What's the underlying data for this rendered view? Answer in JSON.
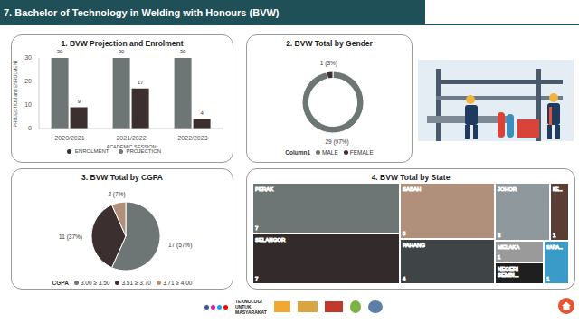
{
  "header": {
    "title": "7. Bachelor of Technology in Welding with Honours (BVW)"
  },
  "footer": {
    "tagline": "TEKNOLOGI UNTUK MASYARAKAT"
  },
  "chart_data": [
    {
      "type": "bar",
      "title": "1. BVW Projection and Enrolment",
      "x_label": "ACADEMIC SESSION",
      "y_label": "PROJECTION and ENROLMENT",
      "categories": [
        "2020/2021",
        "2021/2022",
        "2022/2023"
      ],
      "series": [
        {
          "name": "PROJECTION",
          "color": "#6e7575",
          "values": [
            30,
            30,
            30
          ]
        },
        {
          "name": "ENROLMENT",
          "color": "#3b2f2f",
          "values": [
            9,
            17,
            4
          ]
        }
      ],
      "ylim": [
        0,
        30
      ],
      "yticks": [
        0,
        10,
        20,
        30
      ],
      "grid": false,
      "legend": "bottom",
      "data_labels": true
    },
    {
      "type": "donut",
      "title": "2. BVW Total by Gender",
      "legend_title": "Column1",
      "categories": [
        "MALE",
        "FEMALE"
      ],
      "values": [
        29,
        1
      ],
      "value_labels": [
        "29 (97%)",
        "1 (3%)"
      ],
      "colors": [
        "#6e7575",
        "#3b2f2f"
      ],
      "data_labels": true,
      "legend": "bottom"
    },
    {
      "type": "pie",
      "title": "3. BVW Total by CGPA",
      "legend_title": "CGPA",
      "categories": [
        "3.00 ≥ 3.50",
        "3.51 ≥ 3.70",
        "3.71 ≥ 4.00"
      ],
      "values": [
        17,
        11,
        2
      ],
      "value_labels": [
        "17 (57%)",
        "11 (37%)",
        "2 (7%)"
      ],
      "colors": [
        "#6e7575",
        "#3b2f2f",
        "#b0907a"
      ],
      "data_labels": true,
      "legend": "bottom"
    },
    {
      "type": "treemap",
      "title": "4. BVW Total by State",
      "categories": [
        "PERAK",
        "SELANGOR",
        "SABAH",
        "PAHANG",
        "JOHOR",
        "KE...",
        "MELAKA",
        "NEGERI SEMBI...",
        "SARA..."
      ],
      "values": [
        7,
        7,
        5,
        4,
        3,
        1,
        1,
        1,
        1
      ],
      "colors": [
        "#6e7575",
        "#332b2b",
        "#b0907a",
        "#3f4446",
        "#8e989d",
        "#5a3e36",
        "#9a9a9a",
        "#1f1f1f",
        "#3a9bc8"
      ],
      "data_labels": true
    }
  ]
}
